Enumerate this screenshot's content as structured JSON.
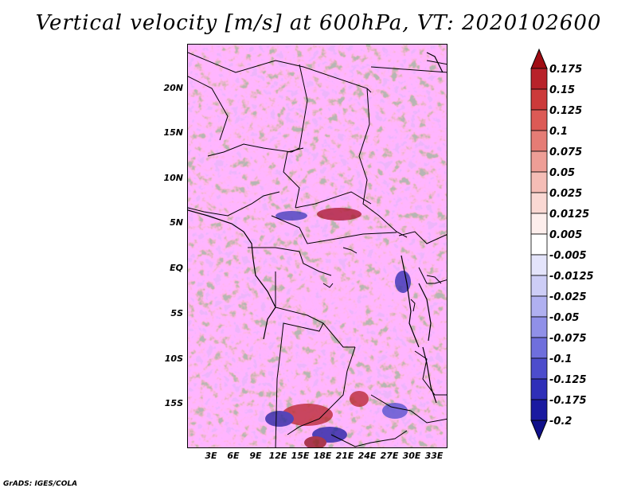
{
  "title": "Vertical velocity [m/s] at 600hPa, VT: 2020102600",
  "footer": "GrADS: IGES/COLA",
  "lat_ticks": [
    "20N",
    "15N",
    "10N",
    "5N",
    "EQ",
    "5S",
    "10S",
    "15S"
  ],
  "lon_ticks": [
    "3E",
    "6E",
    "9E",
    "12E",
    "15E",
    "18E",
    "21E",
    "24E",
    "27E",
    "30E",
    "33E"
  ],
  "colorbar": {
    "labels": [
      "0.175",
      "0.15",
      "0.125",
      "0.1",
      "0.075",
      "0.05",
      "0.025",
      "0.0125",
      "0.005",
      "-0.005",
      "-0.0125",
      "-0.025",
      "-0.05",
      "-0.075",
      "-0.1",
      "-0.125",
      "-0.175",
      "-0.2"
    ],
    "colors": [
      "#a00d14",
      "#b8222a",
      "#cc3a3a",
      "#dc5a55",
      "#e57c75",
      "#ee9e96",
      "#f5bdb6",
      "#fad8d3",
      "#fdeeec",
      "#ffffff",
      "#e4e4fb",
      "#cdcdf6",
      "#b0b0f0",
      "#9090e8",
      "#6f6fdc",
      "#4d4dcc",
      "#2f2fb8",
      "#1a1aa0",
      "#10108a"
    ]
  },
  "colors": {
    "positive": "#cc3333",
    "negative": "#3333cc",
    "coastline": "#000000"
  }
}
